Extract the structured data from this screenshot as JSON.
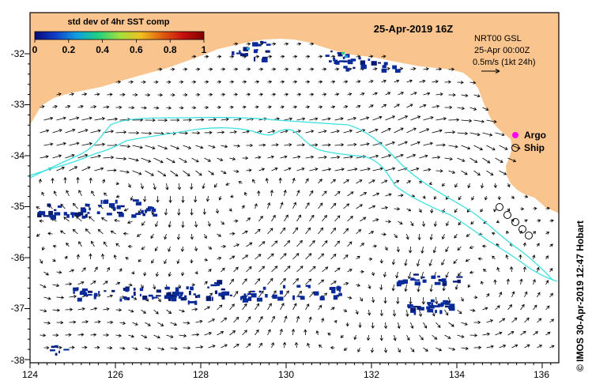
{
  "map": {
    "date_title": "25-Apr-2019 16Z",
    "colorbar": {
      "title": "std dev of 4hr SST comp",
      "ticks": [
        "0",
        "0.2",
        "0.4",
        "0.6",
        "0.8",
        "1"
      ],
      "colors": [
        "#08087a",
        "#1040c8",
        "#10a0e0",
        "#20d080",
        "#a0e040",
        "#f0c020",
        "#e06010",
        "#c81010",
        "#800000"
      ]
    },
    "current_info": {
      "line1": "NRT00 GSL",
      "line2": "25-Apr 00:00Z",
      "line3": "0.5m/s (1kt 24h)"
    },
    "legend": {
      "argo": "Argo",
      "ship": "Ship",
      "argo_color": "#ff00ff"
    },
    "credit": "© IMOS 30-Apr-2019 12:47 Hobart",
    "colors": {
      "land": "#f9c48e",
      "contour": "#3fe0e0",
      "sst_patch": "#0a2a9a",
      "sst_patch_dark": "#061a70"
    },
    "lon_ticks": [
      "124",
      "126",
      "128",
      "130",
      "132",
      "134",
      "136"
    ],
    "lat_ticks": [
      "-32",
      "-33",
      "-34",
      "-35",
      "-36",
      "-37",
      "-38"
    ],
    "extent": {
      "lon": [
        124,
        136.5
      ],
      "lat": [
        -38.1,
        -31.4
      ]
    }
  }
}
